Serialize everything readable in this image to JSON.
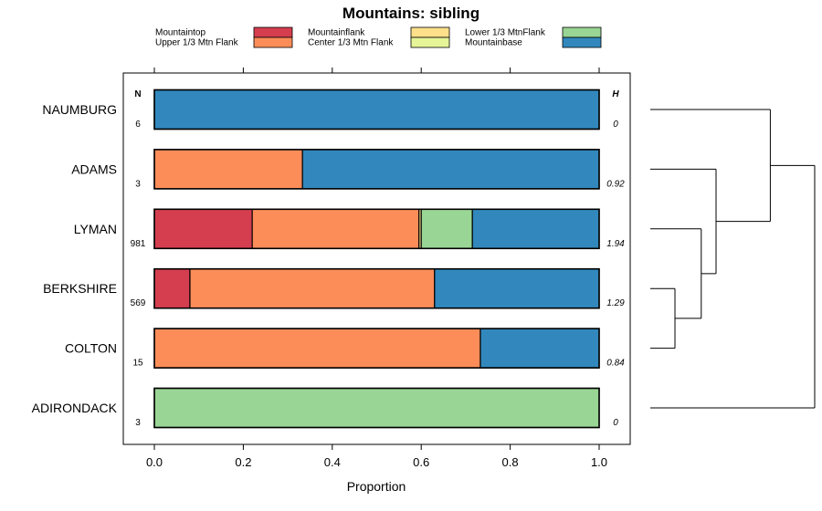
{
  "chart_data": {
    "type": "bar",
    "orientation": "horizontal",
    "stacked": true,
    "title": "Mountains: sibling",
    "xlabel": "Proportion",
    "ylabel": "",
    "xlim": [
      0,
      1
    ],
    "xticks": [
      "0.0",
      "0.2",
      "0.4",
      "0.6",
      "0.8",
      "1.0"
    ],
    "n_header": "N",
    "h_header": "H",
    "legend": [
      {
        "name": "Mountaintop",
        "color": "#d53e4f"
      },
      {
        "name": "Upper 1/3 Mtn Flank",
        "color": "#fc8d59"
      },
      {
        "name": "Mountainflank",
        "color": "#fee08b"
      },
      {
        "name": "Center 1/3 Mtn Flank",
        "color": "#e6f598"
      },
      {
        "name": "Lower 1/3 MtnFlank",
        "color": "#99d594"
      },
      {
        "name": "Mountainbase",
        "color": "#3288bd"
      }
    ],
    "categories": [
      "NAUMBURG",
      "ADAMS",
      "LYMAN",
      "BERKSHIRE",
      "COLTON",
      "ADIRONDACK"
    ],
    "n_values": [
      "6",
      "3",
      "981",
      "569",
      "15",
      "3"
    ],
    "h_values": [
      "0",
      "0.92",
      "1.94",
      "1.29",
      "0.84",
      "0"
    ],
    "series": [
      {
        "name": "Mountaintop",
        "values": [
          0,
          0,
          0.22,
          0.08,
          0,
          0
        ]
      },
      {
        "name": "Upper 1/3 Mtn Flank",
        "values": [
          0,
          0.333,
          0.375,
          0.55,
          0.733,
          0
        ]
      },
      {
        "name": "Mountainflank",
        "values": [
          0,
          0,
          0.005,
          0,
          0,
          0
        ]
      },
      {
        "name": "Center 1/3 Mtn Flank",
        "values": [
          0,
          0,
          0,
          0,
          0,
          0
        ]
      },
      {
        "name": "Lower 1/3 MtnFlank",
        "values": [
          0,
          0,
          0.115,
          0,
          0,
          1
        ]
      },
      {
        "name": "Mountainbase",
        "values": [
          1,
          0.667,
          0.285,
          0.37,
          0.267,
          0
        ]
      }
    ],
    "dendrogram": {
      "leaves": [
        "NAUMBURG",
        "ADAMS",
        "LYMAN",
        "BERKSHIRE",
        "COLTON",
        "ADIRONDACK"
      ],
      "merges": [
        {
          "left": "BERKSHIRE",
          "right": "COLTON",
          "height": 0.15
        },
        {
          "left": "LYMAN",
          "right": "BERKSHIRE+COLTON",
          "height": 0.31
        },
        {
          "left": "ADAMS",
          "right": "LYMAN+BERKSHIRE+COLTON",
          "height": 0.4
        },
        {
          "left": "NAUMBURG",
          "right": "ADAMS+LYMAN+BERKSHIRE+COLTON",
          "height": 0.73
        },
        {
          "left": "NAUMBURG+ADAMS+LYMAN+BERKSHIRE+COLTON",
          "right": "ADIRONDACK",
          "height": 1.0
        }
      ]
    }
  }
}
